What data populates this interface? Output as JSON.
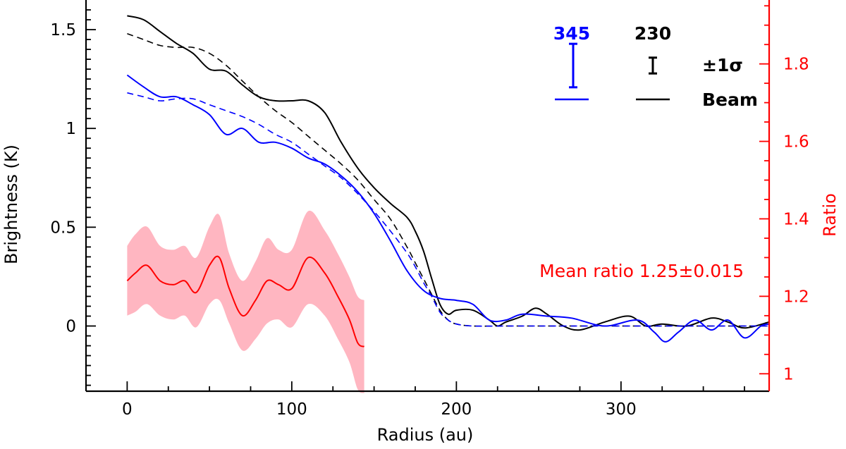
{
  "chart_data": {
    "type": "line",
    "xlabel": "Radius (au)",
    "ylabel": "Brightness (K)",
    "y2label": "Ratio",
    "xlim": [
      -25,
      390
    ],
    "ylim": [
      -0.33,
      1.65
    ],
    "y2lim": [
      0.955,
      1.965
    ],
    "x_ticks": [
      0,
      100,
      200,
      300
    ],
    "x_tick_labels": [
      "0",
      "100",
      "200",
      "300"
    ],
    "y_ticks": [
      0,
      0.5,
      1,
      1.5
    ],
    "y_tick_labels": [
      "0",
      "0.5",
      "1",
      "1.5"
    ],
    "y2_ticks": [
      1.0,
      1.2,
      1.4,
      1.6,
      1.8
    ],
    "y2_tick_labels": [
      "1",
      "1.2",
      "1.4",
      "1.6",
      "1.8"
    ],
    "series": [
      {
        "name": "230 profile",
        "color": "#000000",
        "dash": "solid",
        "axis": "left",
        "x": [
          0,
          10,
          20,
          30,
          40,
          50,
          60,
          70,
          80,
          90,
          100,
          110,
          120,
          130,
          140,
          150,
          160,
          170,
          175,
          180,
          185,
          190,
          195,
          200,
          210,
          220,
          225,
          230,
          240,
          248,
          255,
          265,
          275,
          290,
          305,
          315,
          325,
          340,
          355,
          365,
          375,
          390
        ],
        "y": [
          1.57,
          1.55,
          1.49,
          1.43,
          1.38,
          1.3,
          1.29,
          1.22,
          1.16,
          1.14,
          1.14,
          1.14,
          1.08,
          0.93,
          0.8,
          0.7,
          0.62,
          0.55,
          0.48,
          0.38,
          0.24,
          0.11,
          0.06,
          0.08,
          0.08,
          0.03,
          0.0,
          0.02,
          0.05,
          0.09,
          0.06,
          0.0,
          -0.02,
          0.02,
          0.05,
          0.0,
          0.01,
          0.0,
          0.04,
          0.02,
          -0.01,
          0.02
        ]
      },
      {
        "name": "230 beam convolved",
        "color": "#000000",
        "dash": "dashed",
        "axis": "left",
        "x": [
          0,
          10,
          20,
          30,
          40,
          50,
          60,
          70,
          80,
          90,
          100,
          110,
          120,
          130,
          140,
          150,
          160,
          170,
          175,
          180,
          185,
          190,
          195,
          200,
          210,
          230,
          260,
          300,
          350,
          390
        ],
        "y": [
          1.48,
          1.45,
          1.42,
          1.41,
          1.41,
          1.38,
          1.32,
          1.24,
          1.16,
          1.09,
          1.03,
          0.96,
          0.89,
          0.82,
          0.74,
          0.64,
          0.54,
          0.4,
          0.32,
          0.24,
          0.16,
          0.08,
          0.03,
          0.01,
          0.0,
          0.0,
          0.0,
          0.0,
          0.0,
          0.0
        ]
      },
      {
        "name": "345 profile",
        "color": "#0000ff",
        "dash": "solid",
        "axis": "left",
        "x": [
          0,
          10,
          20,
          30,
          40,
          50,
          60,
          70,
          80,
          90,
          100,
          110,
          120,
          130,
          140,
          150,
          160,
          170,
          180,
          190,
          200,
          210,
          220,
          230,
          240,
          255,
          270,
          290,
          310,
          320,
          327,
          335,
          345,
          355,
          365,
          375,
          385,
          390
        ],
        "y": [
          1.27,
          1.21,
          1.16,
          1.16,
          1.12,
          1.07,
          0.97,
          1.0,
          0.93,
          0.93,
          0.9,
          0.85,
          0.82,
          0.76,
          0.68,
          0.57,
          0.43,
          0.28,
          0.18,
          0.14,
          0.13,
          0.11,
          0.03,
          0.03,
          0.06,
          0.05,
          0.04,
          0.0,
          0.03,
          -0.03,
          -0.08,
          -0.03,
          0.03,
          -0.02,
          0.03,
          -0.06,
          0.0,
          0.01
        ]
      },
      {
        "name": "345 beam convolved",
        "color": "#0000ff",
        "dash": "dashed",
        "axis": "left",
        "x": [
          0,
          10,
          20,
          30,
          40,
          50,
          60,
          70,
          80,
          90,
          100,
          110,
          120,
          130,
          140,
          150,
          160,
          170,
          175,
          180,
          185,
          190,
          195,
          200,
          210,
          230,
          260,
          300,
          350,
          390
        ],
        "y": [
          1.18,
          1.16,
          1.14,
          1.15,
          1.15,
          1.12,
          1.09,
          1.06,
          1.02,
          0.97,
          0.93,
          0.87,
          0.81,
          0.75,
          0.67,
          0.58,
          0.48,
          0.37,
          0.3,
          0.22,
          0.15,
          0.07,
          0.03,
          0.01,
          0.0,
          0.0,
          0.0,
          0.0,
          0.0,
          0.0
        ]
      },
      {
        "name": "Ratio",
        "color": "#ff0000",
        "dash": "solid",
        "axis": "right",
        "x": [
          0,
          5,
          12,
          20,
          28,
          35,
          42,
          50,
          56,
          62,
          70,
          78,
          85,
          92,
          100,
          110,
          120,
          128,
          135,
          140,
          144
        ],
        "y": [
          1.24,
          1.26,
          1.28,
          1.24,
          1.23,
          1.24,
          1.21,
          1.28,
          1.3,
          1.22,
          1.15,
          1.19,
          1.24,
          1.23,
          1.22,
          1.3,
          1.26,
          1.2,
          1.14,
          1.08,
          1.07
        ],
        "err_upper": [
          1.33,
          1.36,
          1.38,
          1.33,
          1.32,
          1.33,
          1.3,
          1.38,
          1.41,
          1.31,
          1.24,
          1.29,
          1.35,
          1.32,
          1.32,
          1.42,
          1.37,
          1.31,
          1.25,
          1.2,
          1.19
        ],
        "err_lower": [
          1.15,
          1.16,
          1.18,
          1.15,
          1.14,
          1.15,
          1.12,
          1.18,
          1.19,
          1.13,
          1.06,
          1.09,
          1.13,
          1.14,
          1.12,
          1.18,
          1.15,
          1.09,
          1.03,
          0.96,
          0.95
        ]
      }
    ],
    "legend": {
      "position": "top-right",
      "label_345": "345",
      "label_230": "230",
      "sigma_label": "±1σ",
      "beam_label": "Beam",
      "color_345": "#0000ff",
      "color_230": "#000000",
      "errbar_345": 0.11,
      "errbar_230": 0.04
    },
    "annotation": "Mean ratio 1.25±0.015",
    "band_color": "#ffb6c1"
  }
}
